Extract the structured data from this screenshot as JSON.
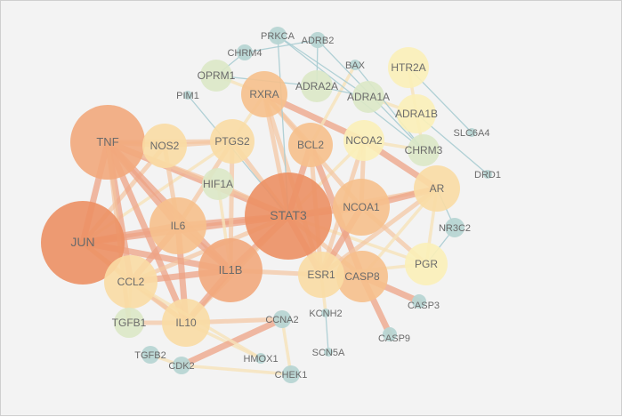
{
  "colors": {
    "background": "#f3f3f3",
    "node_large": "#ec9064",
    "node_big": "#f2a97c",
    "node_mid": "#f6c08c",
    "node_light": "#f9dca4",
    "node_pale": "#fbefb8",
    "node_green": "#dbe8c7",
    "node_teal": "#b7d5d3",
    "edge_strong": "#eea385",
    "edge_mid": "#f3c5a0",
    "edge_pale": "#f6e2b9",
    "edge_blue": "#a9ccd2",
    "label": "#6b6b6b"
  },
  "network": {
    "nodes": [
      {
        "id": "STAT3",
        "label": "STAT3",
        "tier": "large"
      },
      {
        "id": "JUN",
        "label": "JUN",
        "tier": "large"
      },
      {
        "id": "TNF",
        "label": "TNF",
        "tier": "big"
      },
      {
        "id": "IL1B",
        "label": "IL1B",
        "tier": "big"
      },
      {
        "id": "IL6",
        "label": "IL6",
        "tier": "mid"
      },
      {
        "id": "NCOA1",
        "label": "NCOA1",
        "tier": "mid"
      },
      {
        "id": "CASP8",
        "label": "CASP8",
        "tier": "mid"
      },
      {
        "id": "RXRA",
        "label": "RXRA",
        "tier": "mid"
      },
      {
        "id": "BCL2",
        "label": "BCL2",
        "tier": "mid"
      },
      {
        "id": "ESR1",
        "label": "ESR1",
        "tier": "light"
      },
      {
        "id": "CCL2",
        "label": "CCL2",
        "tier": "light"
      },
      {
        "id": "IL10",
        "label": "IL10",
        "tier": "light"
      },
      {
        "id": "PTGS2",
        "label": "PTGS2",
        "tier": "light"
      },
      {
        "id": "NOS2",
        "label": "NOS2",
        "tier": "light"
      },
      {
        "id": "AR",
        "label": "AR",
        "tier": "light"
      },
      {
        "id": "NCOA2",
        "label": "NCOA2",
        "tier": "pale"
      },
      {
        "id": "PGR",
        "label": "PGR",
        "tier": "pale"
      },
      {
        "id": "HTR2A",
        "label": "HTR2A",
        "tier": "pale"
      },
      {
        "id": "ADRA1B",
        "label": "ADRA1B",
        "tier": "pale"
      },
      {
        "id": "HIF1A",
        "label": "HIF1A",
        "tier": "green"
      },
      {
        "id": "OPRM1",
        "label": "OPRM1",
        "tier": "green"
      },
      {
        "id": "ADRA2A",
        "label": "ADRA2A",
        "tier": "green"
      },
      {
        "id": "ADRA1A",
        "label": "ADRA1A",
        "tier": "green"
      },
      {
        "id": "CHRM3",
        "label": "CHRM3",
        "tier": "green"
      },
      {
        "id": "TGFB1",
        "label": "TGFB1",
        "tier": "green"
      },
      {
        "id": "PRKCA",
        "label": "PRKCA",
        "tier": "teal"
      },
      {
        "id": "ADRB2",
        "label": "ADRB2",
        "tier": "teal"
      },
      {
        "id": "CHRM4",
        "label": "CHRM4",
        "tier": "teal"
      },
      {
        "id": "BAX",
        "label": "BAX",
        "tier": "teal"
      },
      {
        "id": "PIM1",
        "label": "PIM1",
        "tier": "teal"
      },
      {
        "id": "SLC6A4",
        "label": "SLC6A4",
        "tier": "teal"
      },
      {
        "id": "DRD1",
        "label": "DRD1",
        "tier": "teal"
      },
      {
        "id": "NR3C2",
        "label": "NR3C2",
        "tier": "teal"
      },
      {
        "id": "CASP3",
        "label": "CASP3",
        "tier": "teal"
      },
      {
        "id": "CASP9",
        "label": "CASP9",
        "tier": "teal"
      },
      {
        "id": "KCNH2",
        "label": "KCNH2",
        "tier": "teal"
      },
      {
        "id": "SCN5A",
        "label": "SCN5A",
        "tier": "teal"
      },
      {
        "id": "CCNA2",
        "label": "CCNA2",
        "tier": "teal"
      },
      {
        "id": "HMOX1",
        "label": "HMOX1",
        "tier": "teal"
      },
      {
        "id": "CHEK1",
        "label": "CHEK1",
        "tier": "teal"
      },
      {
        "id": "CDK2",
        "label": "CDK2",
        "tier": "teal"
      },
      {
        "id": "TGFB2",
        "label": "TGFB2",
        "tier": "teal"
      }
    ],
    "edges": [
      {
        "s": "JUN",
        "t": "STAT3",
        "w": "strong"
      },
      {
        "s": "JUN",
        "t": "TNF",
        "w": "strong"
      },
      {
        "s": "JUN",
        "t": "IL6",
        "w": "strong"
      },
      {
        "s": "JUN",
        "t": "IL1B",
        "w": "strong"
      },
      {
        "s": "JUN",
        "t": "CCL2",
        "w": "mid"
      },
      {
        "s": "JUN",
        "t": "NOS2",
        "w": "mid"
      },
      {
        "s": "JUN",
        "t": "IL10",
        "w": "mid"
      },
      {
        "s": "JUN",
        "t": "PTGS2",
        "w": "pale"
      },
      {
        "s": "TNF",
        "t": "STAT3",
        "w": "strong"
      },
      {
        "s": "TNF",
        "t": "IL6",
        "w": "strong"
      },
      {
        "s": "TNF",
        "t": "IL1B",
        "w": "strong"
      },
      {
        "s": "TNF",
        "t": "CCL2",
        "w": "strong"
      },
      {
        "s": "TNF",
        "t": "IL10",
        "w": "strong"
      },
      {
        "s": "TNF",
        "t": "NOS2",
        "w": "mid"
      },
      {
        "s": "TNF",
        "t": "PTGS2",
        "w": "mid"
      },
      {
        "s": "TNF",
        "t": "HIF1A",
        "w": "mid"
      },
      {
        "s": "TNF",
        "t": "TGFB1",
        "w": "mid"
      },
      {
        "s": "STAT3",
        "t": "IL6",
        "w": "strong"
      },
      {
        "s": "STAT3",
        "t": "IL1B",
        "w": "strong"
      },
      {
        "s": "STAT3",
        "t": "NCOA1",
        "w": "strong"
      },
      {
        "s": "STAT3",
        "t": "BCL2",
        "w": "strong"
      },
      {
        "s": "STAT3",
        "t": "RXRA",
        "w": "mid"
      },
      {
        "s": "STAT3",
        "t": "ESR1",
        "w": "strong"
      },
      {
        "s": "STAT3",
        "t": "CASP8",
        "w": "mid"
      },
      {
        "s": "STAT3",
        "t": "AR",
        "w": "mid"
      },
      {
        "s": "STAT3",
        "t": "PTGS2",
        "w": "mid"
      },
      {
        "s": "STAT3",
        "t": "HIF1A",
        "w": "mid"
      },
      {
        "s": "STAT3",
        "t": "NCOA2",
        "w": "pale"
      },
      {
        "s": "STAT3",
        "t": "PGR",
        "w": "pale"
      },
      {
        "s": "STAT3",
        "t": "CCL2",
        "w": "mid"
      },
      {
        "s": "STAT3",
        "t": "IL10",
        "w": "mid"
      },
      {
        "s": "IL6",
        "t": "IL1B",
        "w": "strong"
      },
      {
        "s": "IL6",
        "t": "CCL2",
        "w": "strong"
      },
      {
        "s": "IL6",
        "t": "IL10",
        "w": "strong"
      },
      {
        "s": "IL6",
        "t": "PTGS2",
        "w": "mid"
      },
      {
        "s": "IL6",
        "t": "NOS2",
        "w": "mid"
      },
      {
        "s": "IL1B",
        "t": "CCL2",
        "w": "strong"
      },
      {
        "s": "IL1B",
        "t": "IL10",
        "w": "strong"
      },
      {
        "s": "IL1B",
        "t": "PTGS2",
        "w": "mid"
      },
      {
        "s": "IL1B",
        "t": "ESR1",
        "w": "mid"
      },
      {
        "s": "NCOA1",
        "t": "AR",
        "w": "strong"
      },
      {
        "s": "NCOA1",
        "t": "ESR1",
        "w": "strong"
      },
      {
        "s": "NCOA1",
        "t": "RXRA",
        "w": "mid"
      },
      {
        "s": "NCOA1",
        "t": "PGR",
        "w": "mid"
      },
      {
        "s": "NCOA1",
        "t": "NCOA2",
        "w": "mid"
      },
      {
        "s": "NCOA2",
        "t": "AR",
        "w": "strong"
      },
      {
        "s": "NCOA2",
        "t": "ESR1",
        "w": "mid"
      },
      {
        "s": "RXRA",
        "t": "BCL2",
        "w": "mid"
      },
      {
        "s": "RXRA",
        "t": "NCOA2",
        "w": "strong"
      },
      {
        "s": "RXRA",
        "t": "ESR1",
        "w": "mid"
      },
      {
        "s": "BCL2",
        "t": "CASP8",
        "w": "strong"
      },
      {
        "s": "BCL2",
        "t": "ESR1",
        "w": "mid"
      },
      {
        "s": "BCL2",
        "t": "BAX",
        "w": "pale"
      },
      {
        "s": "ESR1",
        "t": "CASP8",
        "w": "mid"
      },
      {
        "s": "ESR1",
        "t": "AR",
        "w": "mid"
      },
      {
        "s": "ESR1",
        "t": "PGR",
        "w": "pale"
      },
      {
        "s": "CASP8",
        "t": "CASP3",
        "w": "strong"
      },
      {
        "s": "CASP8",
        "t": "CASP9",
        "w": "strong"
      },
      {
        "s": "CASP8",
        "t": "AR",
        "w": "pale"
      },
      {
        "s": "CCL2",
        "t": "IL10",
        "w": "mid"
      },
      {
        "s": "IL10",
        "t": "TGFB1",
        "w": "mid"
      },
      {
        "s": "IL10",
        "t": "CCNA2",
        "w": "mid"
      },
      {
        "s": "IL10",
        "t": "HMOX1",
        "w": "pale"
      },
      {
        "s": "CCNA2",
        "t": "CDK2",
        "w": "strong"
      },
      {
        "s": "CDK2",
        "t": "CHEK1",
        "w": "pale"
      },
      {
        "s": "CDK2",
        "t": "TGFB2",
        "w": "pale"
      },
      {
        "s": "CCL2",
        "t": "TGFB1",
        "w": "pale"
      },
      {
        "s": "NOS2",
        "t": "PTGS2",
        "w": "mid"
      },
      {
        "s": "PTGS2",
        "t": "RXRA",
        "w": "pale"
      },
      {
        "s": "HIF1A",
        "t": "IL1B",
        "w": "pale"
      },
      {
        "s": "AR",
        "t": "PGR",
        "w": "pale"
      },
      {
        "s": "AR",
        "t": "NR3C2",
        "w": "blue"
      },
      {
        "s": "PGR",
        "t": "NR3C2",
        "w": "blue"
      },
      {
        "s": "HTR2A",
        "t": "ADRA1B",
        "w": "pale"
      },
      {
        "s": "HTR2A",
        "t": "SLC6A4",
        "w": "blue"
      },
      {
        "s": "ADRA1B",
        "t": "DRD1",
        "w": "blue"
      },
      {
        "s": "ADRA1B",
        "t": "CHRM3",
        "w": "pale"
      },
      {
        "s": "ADRA1B",
        "t": "ADRA1A",
        "w": "pale"
      },
      {
        "s": "ADRA1A",
        "t": "ADRA2A",
        "w": "blue"
      },
      {
        "s": "ADRA2A",
        "t": "ADRB2",
        "w": "blue"
      },
      {
        "s": "OPRM1",
        "t": "ADRA2A",
        "w": "blue"
      },
      {
        "s": "OPRM1",
        "t": "CHRM4",
        "w": "blue"
      },
      {
        "s": "OPRM1",
        "t": "RXRA",
        "w": "pale"
      },
      {
        "s": "PRKCA",
        "t": "CHRM3",
        "w": "blue"
      },
      {
        "s": "PRKCA",
        "t": "ADRA1A",
        "w": "blue"
      },
      {
        "s": "PRKCA",
        "t": "STAT3",
        "w": "blue"
      },
      {
        "s": "ADRB2",
        "t": "CHRM3",
        "w": "blue"
      },
      {
        "s": "BAX",
        "t": "CHRM3",
        "w": "blue"
      },
      {
        "s": "PIM1",
        "t": "STAT3",
        "w": "blue"
      },
      {
        "s": "CHRM4",
        "t": "ADRB2",
        "w": "blue"
      },
      {
        "s": "KCNH2",
        "t": "SCN5A",
        "w": "blue"
      },
      {
        "s": "KCNH2",
        "t": "ESR1",
        "w": "pale"
      },
      {
        "s": "CHEK1",
        "t": "CCNA2",
        "w": "pale"
      },
      {
        "s": "HMOX1",
        "t": "CCL2",
        "w": "pale"
      },
      {
        "s": "CHRM3",
        "t": "NCOA2",
        "w": "pale"
      }
    ]
  }
}
